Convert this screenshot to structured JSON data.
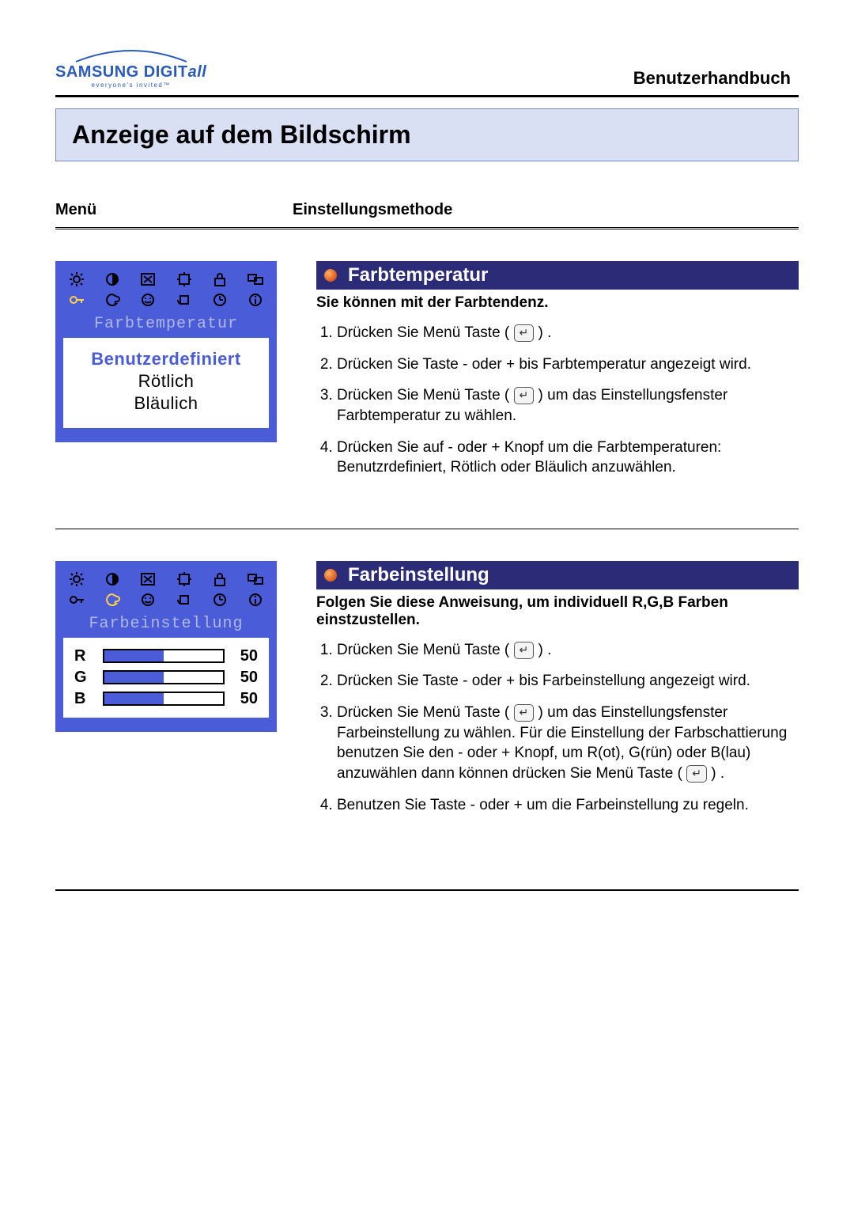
{
  "brand": {
    "name_main": "SAMSUNG DIGIT",
    "name_suffix": "all",
    "tagline": "everyone's invited™",
    "color": "#2a5bb8"
  },
  "doc_title": "Benutzerhandbuch",
  "section_title": "Anzeige auf dem Bildschirm",
  "columns": {
    "menu": "Menü",
    "method": "Einstellungsmethode"
  },
  "osd_colors": {
    "panel_bg": "#4a5cd8",
    "label_text": "#b0b8e8",
    "selected_text": "#4a5cd8",
    "icon_inactive": "#000000",
    "icon_active": "#ffd24a"
  },
  "icon_button_glyph": "↵",
  "section1": {
    "osd_label": "Farbtemperatur",
    "options": [
      {
        "text": "Benutzerdefiniert",
        "selected": true
      },
      {
        "text": "Rötlich",
        "selected": false
      },
      {
        "text": "Bläulich",
        "selected": false
      }
    ],
    "heading": "Farbtemperatur",
    "subheading": "Sie können mit der Farbtendenz.",
    "steps": [
      {
        "pre": "Drücken Sie Menü Taste (",
        "icon": true,
        "post": ") ."
      },
      {
        "pre": "Drücken Sie Taste - oder + bis Farbtemperatur angezeigt wird.",
        "icon": false,
        "post": ""
      },
      {
        "pre": "Drücken Sie Menü Taste (",
        "icon": true,
        "post": ") um das Einstellungsfenster Farbtemperatur zu wählen."
      },
      {
        "pre": "Drücken Sie auf - oder + Knopf um die Farbtemperaturen: Benutzrdefiniert, Rötlich oder Bläulich anzuwählen.",
        "icon": false,
        "post": ""
      }
    ]
  },
  "section2": {
    "osd_label": "Farbeinstellung",
    "rgb": [
      {
        "label": "R",
        "value": 50
      },
      {
        "label": "G",
        "value": 50
      },
      {
        "label": "B",
        "value": 50
      }
    ],
    "rgb_max": 100,
    "heading": "Farbeinstellung",
    "subheading": "Folgen Sie diese Anweisung, um individuell R,G,B Farben einstzustellen.",
    "steps": [
      {
        "pre": "Drücken Sie Menü Taste (",
        "icon": true,
        "post": ") ."
      },
      {
        "pre": "Drücken Sie Taste - oder + bis Farbeinstellung angezeigt wird.",
        "icon": false,
        "post": ""
      },
      {
        "pre": "Drücken Sie Menü Taste (",
        "icon": true,
        "post": ") um das Einstellungsfenster Farbeinstellung zu wählen. Für die Einstellung der Farbschattierung benutzen Sie den - oder + Knopf, um R(ot), G(rün) oder B(lau) anzuwählen dann können drücken Sie Menü Taste (",
        "icon2": true,
        "post2": ") ."
      },
      {
        "pre": "Benutzen Sie Taste - oder + um die Farbeinstellung zu regeln.",
        "icon": false,
        "post": ""
      }
    ]
  }
}
